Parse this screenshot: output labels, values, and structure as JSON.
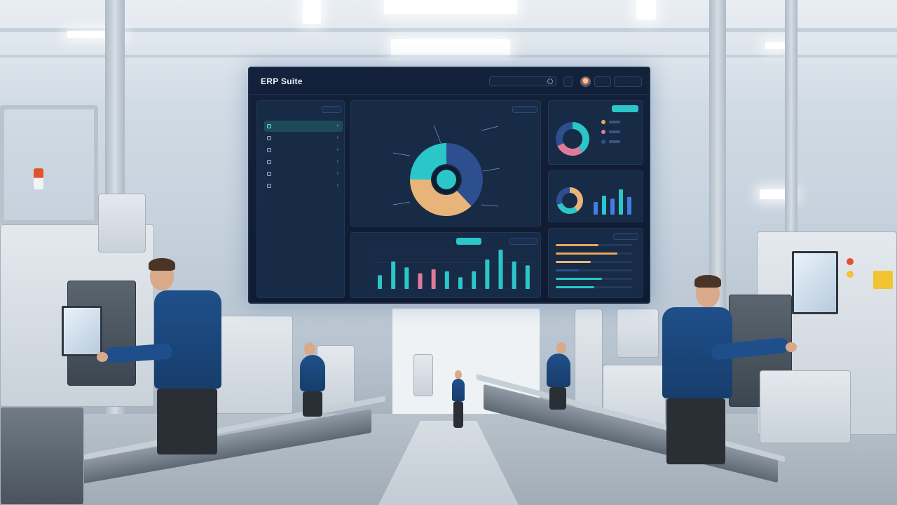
{
  "scene": {
    "screen_colors": {
      "accent": "#2bc6c8",
      "navy": "#2d4f8f",
      "sand": "#e8b47a",
      "pink": "#e07a9a",
      "amber": "#e8a85a"
    }
  },
  "dashboard": {
    "title": "ERP Suite",
    "sidebar": {
      "title": "",
      "items": [
        {
          "label": ""
        },
        {
          "label": ""
        },
        {
          "label": ""
        },
        {
          "label": ""
        },
        {
          "label": ""
        },
        {
          "label": ""
        }
      ]
    },
    "main_panel": {
      "title": "",
      "donut": {
        "values": [
          38,
          37,
          25
        ]
      }
    },
    "bar_panel": {
      "title": "",
      "values": [
        14,
        28,
        22,
        16,
        20,
        18,
        12,
        18,
        30,
        40,
        28,
        24
      ]
    },
    "right_top": {
      "title": "",
      "donut": {
        "values": [
          40,
          28,
          32
        ]
      }
    },
    "right_mid": {
      "title": "",
      "bars": [
        30,
        45,
        38,
        60,
        42
      ]
    },
    "right_bottom": {
      "title": "",
      "bars": [
        0.55,
        0.8,
        0.45,
        0.3,
        0.6,
        0.5
      ]
    }
  }
}
